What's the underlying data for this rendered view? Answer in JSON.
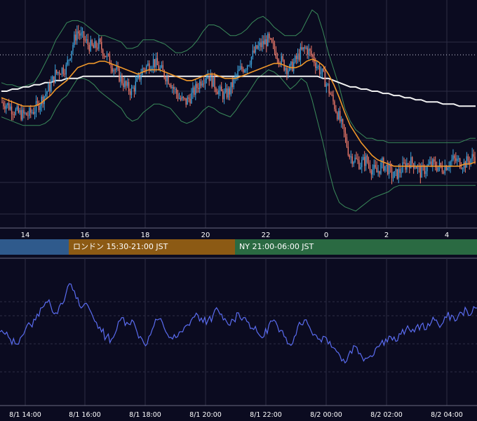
{
  "colors": {
    "background": "#0b0b20",
    "grid": "#2c2c44",
    "candle_up": "#3fa7e0",
    "candle_down": "#ef7a6a",
    "bollinger": "#3a8a5a",
    "ma_short": "#f0982a",
    "ma_long": "#f2f2f2",
    "oscillator": "#5a6cf0",
    "axis_text": "#ffffff",
    "session_asia": "#2f5a8c",
    "session_london": "#8c5a14",
    "session_ny": "#2a6a42"
  },
  "sessions": [
    {
      "label": "",
      "color": "#2f5a8c"
    },
    {
      "label": "ロンドン 15:30-21:00 JST",
      "color": "#8c5a14"
    },
    {
      "label": "NY 21:00-06:00 JST",
      "color": "#2a6a42"
    }
  ],
  "chart_data": [
    {
      "type": "candlestick",
      "description_series": [
        "price candles",
        "bollinger upper",
        "bollinger lower",
        "moving average short",
        "moving average long"
      ],
      "x_tick_labels": [
        "14",
        "16",
        "18",
        "20",
        "22",
        "0",
        "2",
        "4"
      ],
      "y_range": [
        0,
        100
      ],
      "reference_level": 77,
      "close_path": [
        55,
        54,
        52,
        50,
        49,
        49,
        51,
        54,
        58,
        62,
        68,
        70,
        71,
        80,
        88,
        85,
        82,
        80,
        82,
        78,
        74,
        70,
        66,
        62,
        60,
        64,
        70,
        72,
        74,
        71,
        68,
        65,
        60,
        56,
        55,
        58,
        62,
        66,
        68,
        64,
        60,
        58,
        60,
        66,
        70,
        72,
        76,
        80,
        82,
        84,
        80,
        76,
        72,
        70,
        74,
        78,
        80,
        77,
        72,
        68,
        62,
        55,
        48,
        40,
        30,
        28,
        26,
        28,
        24,
        22,
        26,
        24,
        20,
        22,
        25,
        27,
        26,
        22,
        24,
        26,
        25,
        24,
        26,
        28,
        27,
        26,
        28,
        30
      ],
      "upper_band": [
        64,
        63,
        63,
        62,
        62,
        63,
        64,
        68,
        73,
        78,
        84,
        88,
        92,
        93,
        93,
        92,
        90,
        88,
        86,
        86,
        85,
        84,
        83,
        80,
        80,
        81,
        84,
        84,
        84,
        83,
        82,
        80,
        78,
        78,
        79,
        81,
        84,
        88,
        91,
        91,
        90,
        88,
        86,
        86,
        87,
        89,
        92,
        94,
        95,
        93,
        90,
        88,
        86,
        86,
        86,
        88,
        93,
        98,
        96,
        88,
        78,
        70,
        62,
        52,
        46,
        42,
        40,
        38,
        38,
        37,
        37,
        36,
        36,
        36,
        36,
        36,
        36,
        36,
        36,
        36,
        36,
        36,
        36,
        36,
        36,
        37,
        38,
        38
      ],
      "lower_band": [
        48,
        47,
        46,
        45,
        44,
        44,
        44,
        44,
        45,
        47,
        52,
        56,
        58,
        62,
        66,
        66,
        65,
        63,
        60,
        58,
        56,
        54,
        52,
        48,
        46,
        47,
        50,
        52,
        54,
        54,
        53,
        52,
        49,
        46,
        45,
        46,
        48,
        51,
        53,
        52,
        50,
        49,
        48,
        51,
        55,
        58,
        62,
        66,
        68,
        70,
        69,
        67,
        64,
        61,
        63,
        66,
        64,
        56,
        46,
        36,
        24,
        14,
        8,
        6,
        5,
        4,
        6,
        8,
        10,
        11,
        12,
        13,
        15,
        16,
        16,
        16,
        16,
        16,
        16,
        16,
        16,
        16,
        16,
        16,
        16,
        16,
        16,
        16
      ],
      "ma_short": [
        57,
        56,
        55,
        54,
        53,
        53,
        53,
        54,
        56,
        58,
        61,
        63,
        65,
        68,
        71,
        72,
        73,
        73,
        74,
        74,
        73,
        72,
        71,
        70,
        69,
        68,
        69,
        70,
        70,
        70,
        69,
        68,
        67,
        66,
        65,
        65,
        66,
        67,
        68,
        68,
        67,
        66,
        66,
        66,
        67,
        68,
        69,
        70,
        71,
        72,
        73,
        73,
        72,
        71,
        71,
        72,
        74,
        75,
        74,
        72,
        68,
        63,
        57,
        50,
        44,
        40,
        36,
        33,
        30,
        28,
        27,
        26,
        25,
        25,
        25,
        25,
        25,
        25,
        25,
        25,
        25,
        25,
        25,
        25,
        25,
        26,
        26,
        27
      ],
      "ma_long": [
        60,
        60,
        61,
        61,
        62,
        62,
        63,
        63,
        64,
        64,
        65,
        65,
        66,
        66,
        66,
        67,
        67,
        67,
        67,
        67,
        67,
        67,
        67,
        67,
        67,
        67,
        67,
        67,
        67,
        67,
        67,
        67,
        67,
        67,
        67,
        67,
        67,
        67,
        67,
        67,
        67,
        67,
        67,
        67,
        67,
        67,
        67,
        67,
        67,
        67,
        67,
        67,
        67,
        67,
        67,
        67,
        67,
        67,
        67,
        66,
        66,
        65,
        64,
        63,
        62,
        62,
        61,
        61,
        60,
        60,
        59,
        59,
        58,
        58,
        57,
        57,
        56,
        56,
        55,
        55,
        55,
        54,
        54,
        54,
        53,
        53,
        53,
        53
      ]
    },
    {
      "type": "line",
      "description_series": [
        "oscillator"
      ],
      "x_tick_labels": [
        "8/1 14:00",
        "8/1 16:00",
        "8/1 18:00",
        "8/1 20:00",
        "8/1 22:00",
        "8/2 00:00",
        "8/2 02:00",
        "8/2 04:00"
      ],
      "y_range": [
        0,
        100
      ],
      "values": [
        50,
        48,
        44,
        40,
        45,
        52,
        56,
        60,
        70,
        75,
        72,
        66,
        74,
        82,
        90,
        78,
        70,
        74,
        66,
        58,
        50,
        46,
        44,
        52,
        62,
        58,
        60,
        50,
        44,
        40,
        52,
        60,
        58,
        48,
        44,
        46,
        50,
        56,
        62,
        64,
        58,
        60,
        64,
        68,
        60,
        56,
        60,
        66,
        62,
        58,
        52,
        48,
        46,
        56,
        60,
        50,
        46,
        40,
        46,
        58,
        60,
        54,
        48,
        44,
        46,
        42,
        36,
        30,
        24,
        34,
        38,
        32,
        28,
        30,
        36,
        40,
        44,
        46,
        42,
        48,
        52,
        50,
        54,
        56,
        52,
        58,
        60,
        56,
        62,
        64,
        60,
        66,
        68,
        66,
        70
      ]
    }
  ]
}
